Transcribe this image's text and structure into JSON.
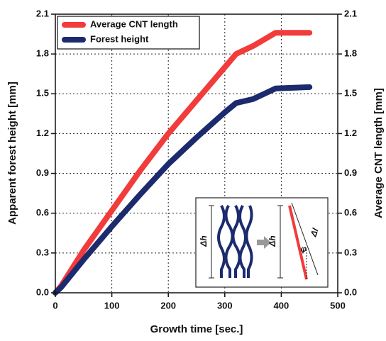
{
  "chart_data": {
    "type": "line",
    "xlabel": "Growth time [sec.]",
    "ylabel": "Apparent forest height [mm]",
    "y2label": "Average CNT length [mm]",
    "x": [
      0,
      10,
      50,
      100,
      150,
      200,
      250,
      300,
      320,
      350,
      390,
      450
    ],
    "series": [
      {
        "name": "Average CNT length",
        "color": "#f23b3b",
        "axis": "y2",
        "values": [
          0,
          0.05,
          0.32,
          0.62,
          0.92,
          1.2,
          1.45,
          1.7,
          1.8,
          1.86,
          1.96,
          1.96
        ]
      },
      {
        "name": "Forest height",
        "color": "#1c2a6e",
        "values": [
          0,
          0.04,
          0.25,
          0.5,
          0.74,
          0.97,
          1.17,
          1.36,
          1.43,
          1.46,
          1.54,
          1.55
        ]
      }
    ],
    "xlim": [
      0,
      500
    ],
    "xticks": [
      0,
      100,
      200,
      300,
      400,
      500
    ],
    "ylim": [
      0,
      2.1
    ],
    "yticks": [
      {
        "value": 0,
        "label": "0.0"
      },
      0.3,
      0.6,
      0.9,
      1.2,
      1.5,
      1.8,
      2.1
    ],
    "y2lim": [
      0,
      2.1
    ],
    "y2ticks": [
      {
        "value": 0,
        "label": "0.0"
      },
      0.3,
      0.6,
      0.9,
      1.2,
      1.5,
      1.8,
      2.1
    ],
    "grid": true,
    "legend": "upper-left"
  },
  "inset": {
    "labels": [
      "Δh",
      "Δh",
      "Δl",
      "φ"
    ]
  }
}
